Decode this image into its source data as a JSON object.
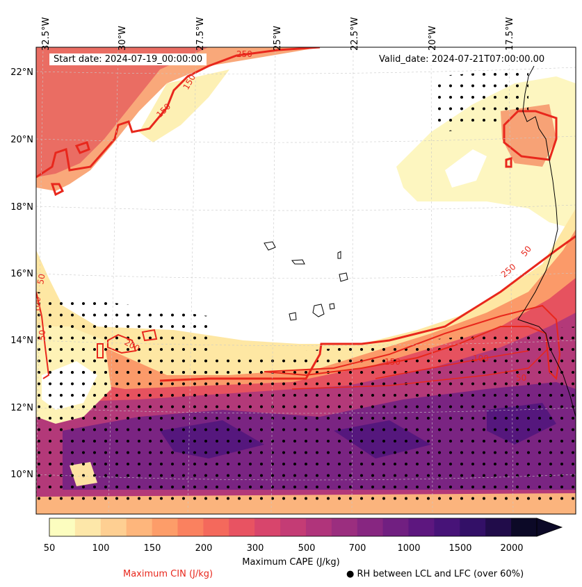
{
  "title_left": "Start date: 2024-07-19_00:00:00",
  "title_right": "Valid_date: 2024-07-21T07:00:00.00",
  "lon_labels": [
    "32.5°W",
    "30°W",
    "27.5°W",
    "25°W",
    "22.5°W",
    "20°W",
    "17.5°W"
  ],
  "lat_labels": [
    "22°N",
    "20°N",
    "18°N",
    "16°N",
    "14°N",
    "12°N",
    "10°N"
  ],
  "colorbar": {
    "title": "Maximum CAPE (J/kg)",
    "ticks": [
      "50",
      "100",
      "150",
      "200",
      "300",
      "500",
      "700",
      "1000",
      "1500",
      "2000"
    ],
    "levels": [
      50,
      75,
      100,
      125,
      150,
      175,
      200,
      250,
      300,
      400,
      500,
      600,
      700,
      800,
      1000,
      1250,
      1500,
      1750,
      2000
    ],
    "colors": [
      "#fcfdbf",
      "#fde7a9",
      "#fecf92",
      "#feb67c",
      "#fd9d69",
      "#fa815f",
      "#f4695c",
      "#e85362",
      "#d8456c",
      "#c43c75",
      "#b0347b",
      "#9b2e7f",
      "#872681",
      "#711f81",
      "#5d177f",
      "#471378",
      "#331067",
      "#210c4a",
      "#0c0927"
    ],
    "extend": "max"
  },
  "legend": {
    "cin_label": "Maximum CIN (J/kg)",
    "cin_color": "#e8271c",
    "rh_label": "RH between LCL and LFC (over 60%)",
    "rh_marker": "●"
  },
  "cin_contour_labels": [
    "250",
    "150",
    "150",
    "100",
    "50",
    "50",
    "200",
    "250",
    "150",
    "100",
    "50",
    "50"
  ]
}
